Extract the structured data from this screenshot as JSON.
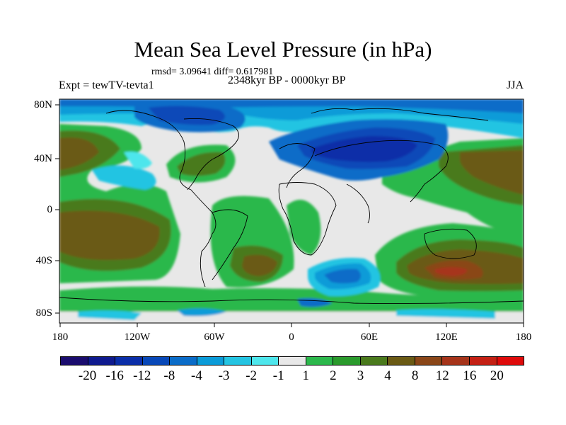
{
  "title": "Mean Sea Level Pressure (in hPa)",
  "stats": "rmsd= 3.09641  diff= 0.617981",
  "left_label": "Expt = tewTV-tevta1",
  "center_label": "2348kyr BP - 0000kyr BP",
  "right_label": "JJA",
  "y_ticks": [
    "80N",
    "40N",
    "0",
    "40S",
    "80S"
  ],
  "x_ticks": [
    "180",
    "120W",
    "60W",
    "0",
    "60E",
    "120E",
    "180"
  ],
  "colorbar_labels": [
    "-20",
    "-16",
    "-12",
    "-8",
    "-4",
    "-3",
    "-2",
    "-1",
    "1",
    "2",
    "3",
    "4",
    "8",
    "12",
    "16",
    "20"
  ],
  "colors": {
    "land_outline": "#000000",
    "neutral": "#e8e8e8",
    "palette": [
      "#1a0c6e",
      "#0f1a8e",
      "#0a2ea8",
      "#0848b8",
      "#0a6cc8",
      "#0a9bd8",
      "#24c4e2",
      "#4ee6ec",
      "#e8e8e8",
      "#2cb84c",
      "#2a9a2c",
      "#4a7a1c",
      "#6a5a14",
      "#8a4618",
      "#a6341a",
      "#c42014",
      "#de0a0a"
    ]
  }
}
